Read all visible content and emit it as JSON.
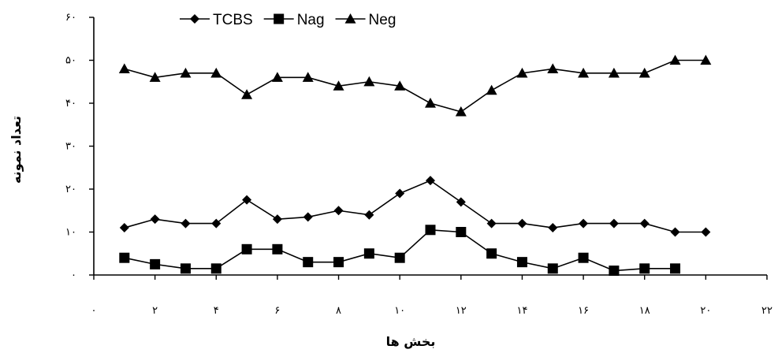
{
  "chart_data": {
    "type": "line",
    "xlabel": "بخش ها",
    "ylabel": "تعداد نمونه",
    "xlim": [
      0,
      22
    ],
    "ylim": [
      0,
      60
    ],
    "x_ticks": [
      0,
      2,
      4,
      6,
      8,
      10,
      12,
      14,
      16,
      18,
      20,
      22
    ],
    "y_ticks": [
      0,
      10,
      20,
      30,
      40,
      50,
      60
    ],
    "x_tick_labels": [
      "۰",
      "۲",
      "۴",
      "۶",
      "۸",
      "۱۰",
      "۱۲",
      "۱۴",
      "۱۶",
      "۱۸",
      "۲۰",
      "۲۲"
    ],
    "y_tick_labels": [
      "۰",
      "۱۰",
      "۲۰",
      "۳۰",
      "۴۰",
      "۵۰",
      "۶۰"
    ],
    "grid": false,
    "legend_position": "top",
    "series": [
      {
        "name": "TCBS",
        "marker": "diamond",
        "color": "#000000",
        "x": [
          1,
          2,
          3,
          4,
          5,
          6,
          7,
          8,
          9,
          10,
          11,
          12,
          13,
          14,
          15,
          16,
          17,
          18,
          19,
          20
        ],
        "values": [
          11,
          13,
          12,
          12,
          17.5,
          13,
          13.5,
          15,
          14,
          19,
          22,
          17,
          12,
          12,
          11,
          12,
          12,
          12,
          10,
          10
        ]
      },
      {
        "name": "Nag",
        "marker": "square",
        "color": "#000000",
        "x": [
          1,
          2,
          3,
          4,
          5,
          6,
          7,
          8,
          9,
          10,
          11,
          12,
          13,
          14,
          15,
          16,
          17,
          18,
          19
        ],
        "values": [
          4,
          2.5,
          1.5,
          1.5,
          6,
          6,
          3,
          3,
          5,
          4,
          10.5,
          10,
          5,
          3,
          1.5,
          4,
          1,
          1.5,
          1.5
        ]
      },
      {
        "name": "Neg",
        "marker": "triangle",
        "color": "#000000",
        "x": [
          1,
          2,
          3,
          4,
          5,
          6,
          7,
          8,
          9,
          10,
          11,
          12,
          13,
          14,
          15,
          16,
          17,
          18,
          19,
          20
        ],
        "values": [
          48,
          46,
          47,
          47,
          42,
          46,
          46,
          44,
          45,
          44,
          40,
          38,
          43,
          47,
          48,
          47,
          47,
          47,
          50,
          50
        ]
      }
    ]
  }
}
